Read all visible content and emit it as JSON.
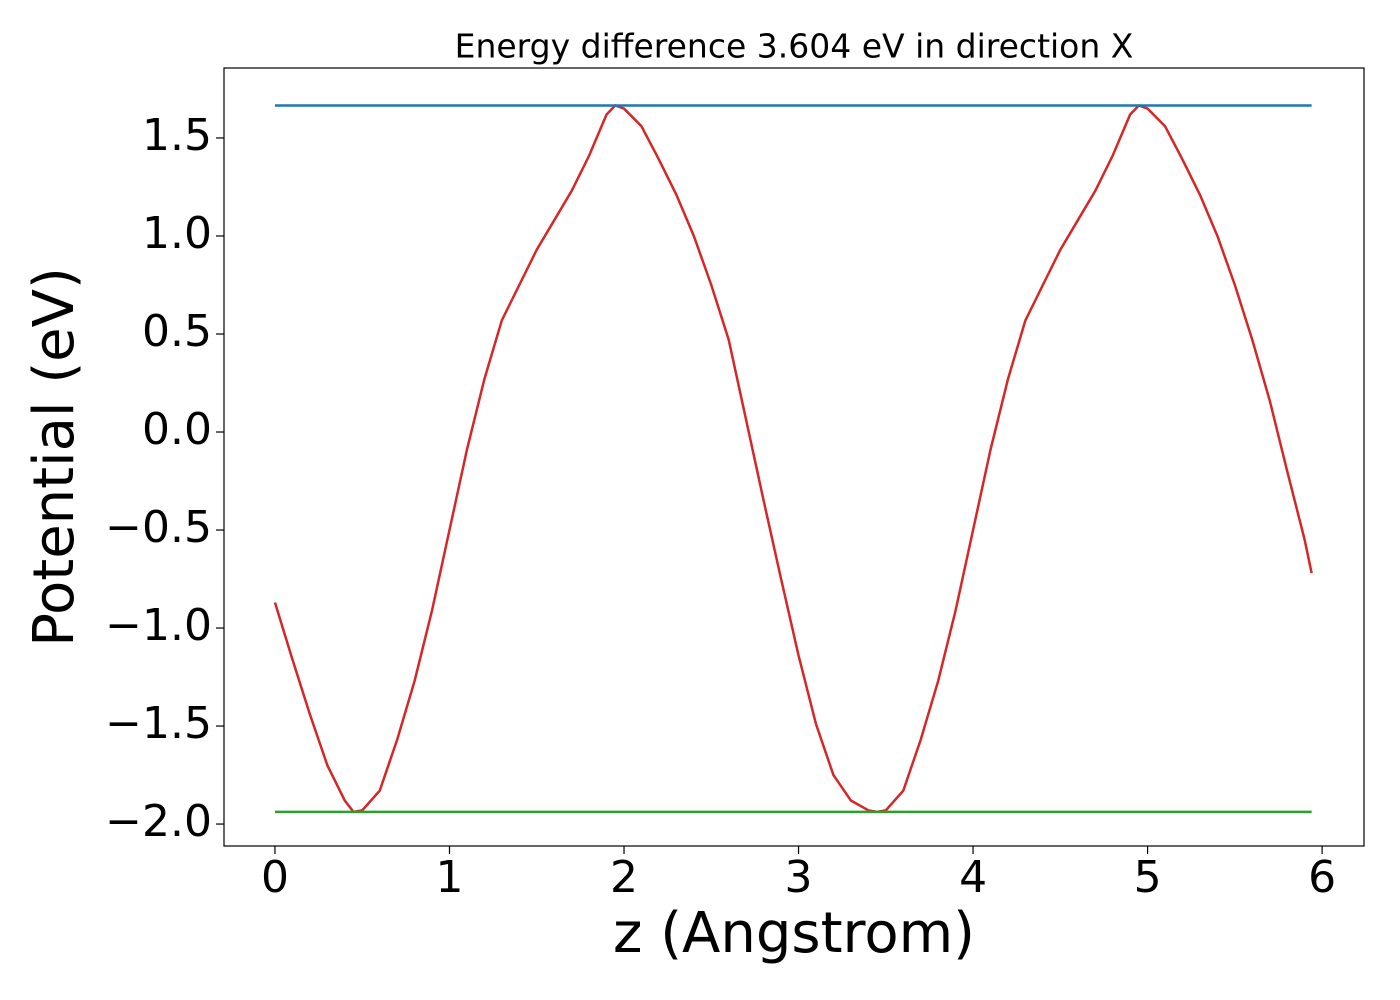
{
  "chart_data": {
    "type": "line",
    "title": "Energy difference 3.604 eV in direction X",
    "x_label": "z (Angstrom)",
    "y_label": "Potential (eV)",
    "xlim": [
      -0.292,
      6.24
    ],
    "ylim": [
      -2.112,
      1.857
    ],
    "xticks": [
      0,
      1,
      2,
      3,
      4,
      5,
      6
    ],
    "yticks": [
      {
        "value": -2,
        "label": "−2.0"
      },
      {
        "value": -1.5,
        "label": "−1.5"
      },
      {
        "value": -1,
        "label": "−1.0"
      },
      {
        "value": -0.5,
        "label": "−0.5"
      },
      {
        "value": 0,
        "label": "0.0"
      },
      0.5,
      {
        "value": 1,
        "label": "1.0"
      },
      1.5
    ],
    "series": [
      {
        "color": "#d62728",
        "x": [
          0,
          0.1,
          0.2,
          0.3,
          0.4,
          0.45,
          0.5,
          0.6,
          0.7,
          0.8,
          0.9,
          1.0,
          1.1,
          1.2,
          1.3,
          1.4,
          1.5,
          1.6,
          1.7,
          1.8,
          1.9,
          1.95,
          2.0,
          2.1,
          2.2,
          2.3,
          2.4,
          2.5,
          2.6,
          2.7,
          2.8,
          2.9,
          3.0,
          3.1,
          3.2,
          3.3,
          3.4,
          3.45,
          3.5,
          3.6,
          3.7,
          3.8,
          3.9,
          4.0,
          4.1,
          4.2,
          4.3,
          4.4,
          4.5,
          4.6,
          4.7,
          4.8,
          4.9,
          4.95,
          5.0,
          5.1,
          5.2,
          5.3,
          5.4,
          5.5,
          5.6,
          5.7,
          5.8,
          5.9,
          5.94
        ],
        "values": [
          -0.87,
          -1.16,
          -1.44,
          -1.7,
          -1.88,
          -1.938,
          -1.93,
          -1.83,
          -1.57,
          -1.27,
          -0.91,
          -0.5,
          -0.09,
          0.27,
          0.57,
          0.75,
          0.93,
          1.08,
          1.23,
          1.41,
          1.62,
          1.666,
          1.65,
          1.56,
          1.39,
          1.21,
          1.0,
          0.75,
          0.47,
          0.06,
          -0.35,
          -0.75,
          -1.14,
          -1.49,
          -1.75,
          -1.88,
          -1.93,
          -1.938,
          -1.93,
          -1.83,
          -1.57,
          -1.27,
          -0.91,
          -0.5,
          -0.09,
          0.27,
          0.57,
          0.75,
          0.93,
          1.08,
          1.23,
          1.41,
          1.62,
          1.666,
          1.65,
          1.56,
          1.39,
          1.21,
          1.0,
          0.75,
          0.47,
          0.16,
          -0.2,
          -0.55,
          -0.72
        ]
      },
      {
        "color": "#1f77b4",
        "x": [
          0,
          5.94
        ],
        "values": [
          1.666,
          1.666
        ]
      },
      {
        "color": "#2ca02c",
        "x": [
          0,
          5.94
        ],
        "values": [
          -1.938,
          -1.938
        ]
      }
    ]
  }
}
